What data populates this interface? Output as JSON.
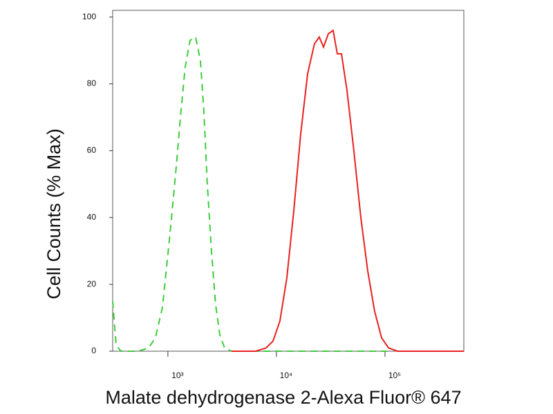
{
  "chart_data": {
    "type": "line",
    "xlabel": "Malate dehydrogenase 2-Alexa Fluor® 647",
    "ylabel": "Cell Counts (% Max)",
    "xscale": "log",
    "xlim": [
      310,
      532000
    ],
    "ylim": [
      0,
      102
    ],
    "xticks": [
      {
        "value": 1000,
        "label": "10³"
      },
      {
        "value": 10000,
        "label": "10⁴"
      },
      {
        "value": 100000,
        "label": "10⁵"
      }
    ],
    "yticks": [
      0,
      20,
      40,
      60,
      80,
      100
    ],
    "series": [
      {
        "color": "#3ccc3c",
        "line_style": "dashed",
        "x": [
          310,
          333,
          369,
          532,
          664,
          767,
          889,
          1030,
          1192,
          1321,
          1443,
          1599,
          1798,
          1993,
          2143,
          2306,
          2518,
          2750,
          3005,
          3327,
          3853,
          10000,
          104500
        ],
        "values": [
          15,
          2,
          0,
          0,
          1,
          4,
          13,
          33,
          55,
          72,
          85,
          93,
          94,
          87,
          72,
          50,
          30,
          14,
          5,
          1,
          0,
          0,
          0
        ]
      },
      {
        "color": "#e8201c",
        "line_style": "solid",
        "x": [
          3853,
          6442,
          8017,
          9290,
          10760,
          12470,
          14430,
          16710,
          19350,
          22400,
          24820,
          27120,
          30050,
          33270,
          36390,
          39720,
          44670,
          51650,
          59840,
          69340,
          80170,
          92900,
          107600,
          130300,
          532000
        ],
        "values": [
          0,
          0,
          1,
          3,
          9,
          22,
          42,
          65,
          83,
          92,
          94,
          91,
          95,
          96,
          89,
          89,
          78,
          60,
          40,
          24,
          12,
          4,
          1,
          0,
          0
        ]
      }
    ]
  }
}
